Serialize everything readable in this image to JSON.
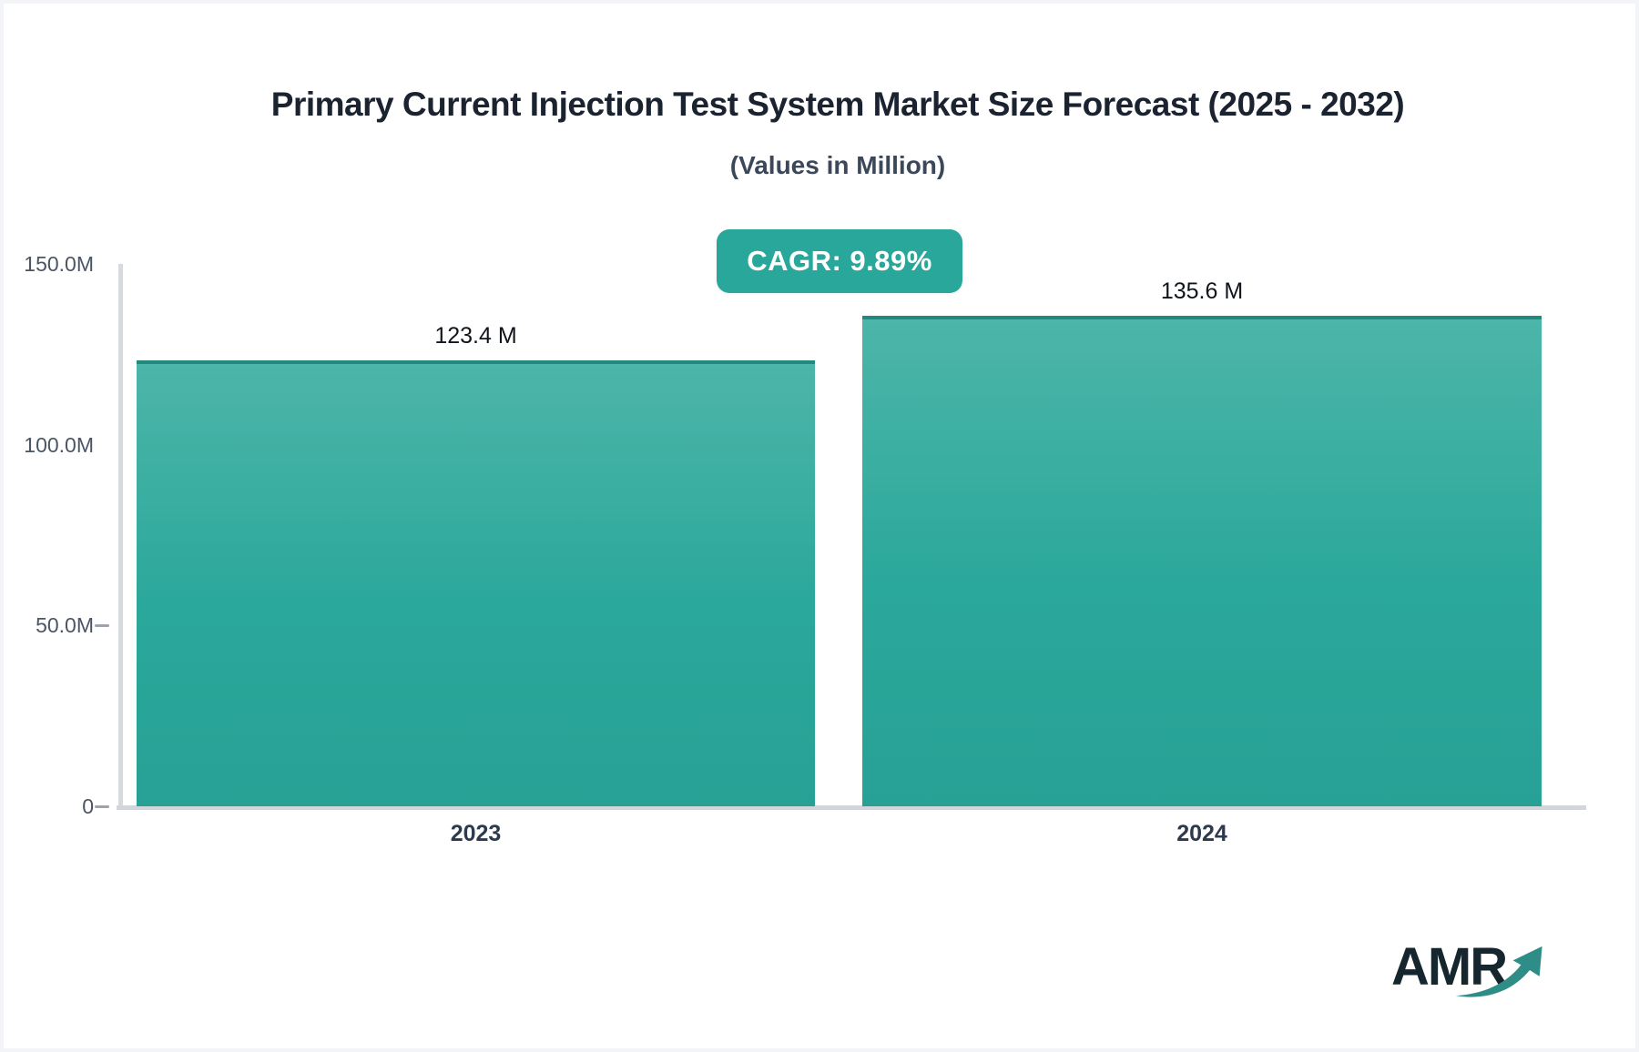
{
  "header": {
    "title": "Primary Current Injection Test System Market Size Forecast (2025 - 2032)",
    "subtitle": "(Values in Million)",
    "cagr_label": "CAGR: 9.89%"
  },
  "chart_data": {
    "type": "bar",
    "title": "Primary Current Injection Test System Market Size Forecast (2025 - 2032)",
    "subtitle": "(Values in Million)",
    "categories": [
      "2023",
      "2024"
    ],
    "values": [
      123.4,
      135.6
    ],
    "value_labels": [
      "123.4 M",
      "135.6 M"
    ],
    "cagr_percent": 9.89,
    "ylim": [
      0,
      150
    ],
    "y_ticks": [
      {
        "label": "150.0M",
        "value": 150,
        "dash": false
      },
      {
        "label": "100.0M",
        "value": 100,
        "dash": false
      },
      {
        "label": "50.0M",
        "value": 50,
        "dash": true
      },
      {
        "label": "0",
        "value": 0,
        "dash": true
      }
    ],
    "grid": false,
    "legend": "none"
  },
  "colors": {
    "bar_gradient_top": "#4db5a9",
    "bar_gradient_bottom": "#28a195",
    "bar_top_edge": "#23887e",
    "badge_background": "#2aa79b",
    "badge_text": "#ffffff",
    "axis_line": "#d6dade",
    "tick_text": "#4b5563",
    "value_text": "#10151c",
    "title_text": "#1b2330",
    "subtitle_text": "#3c4859",
    "logo_text": "#16262e",
    "logo_arrow": "#2e8d86"
  },
  "logo": {
    "text": "AMR"
  }
}
